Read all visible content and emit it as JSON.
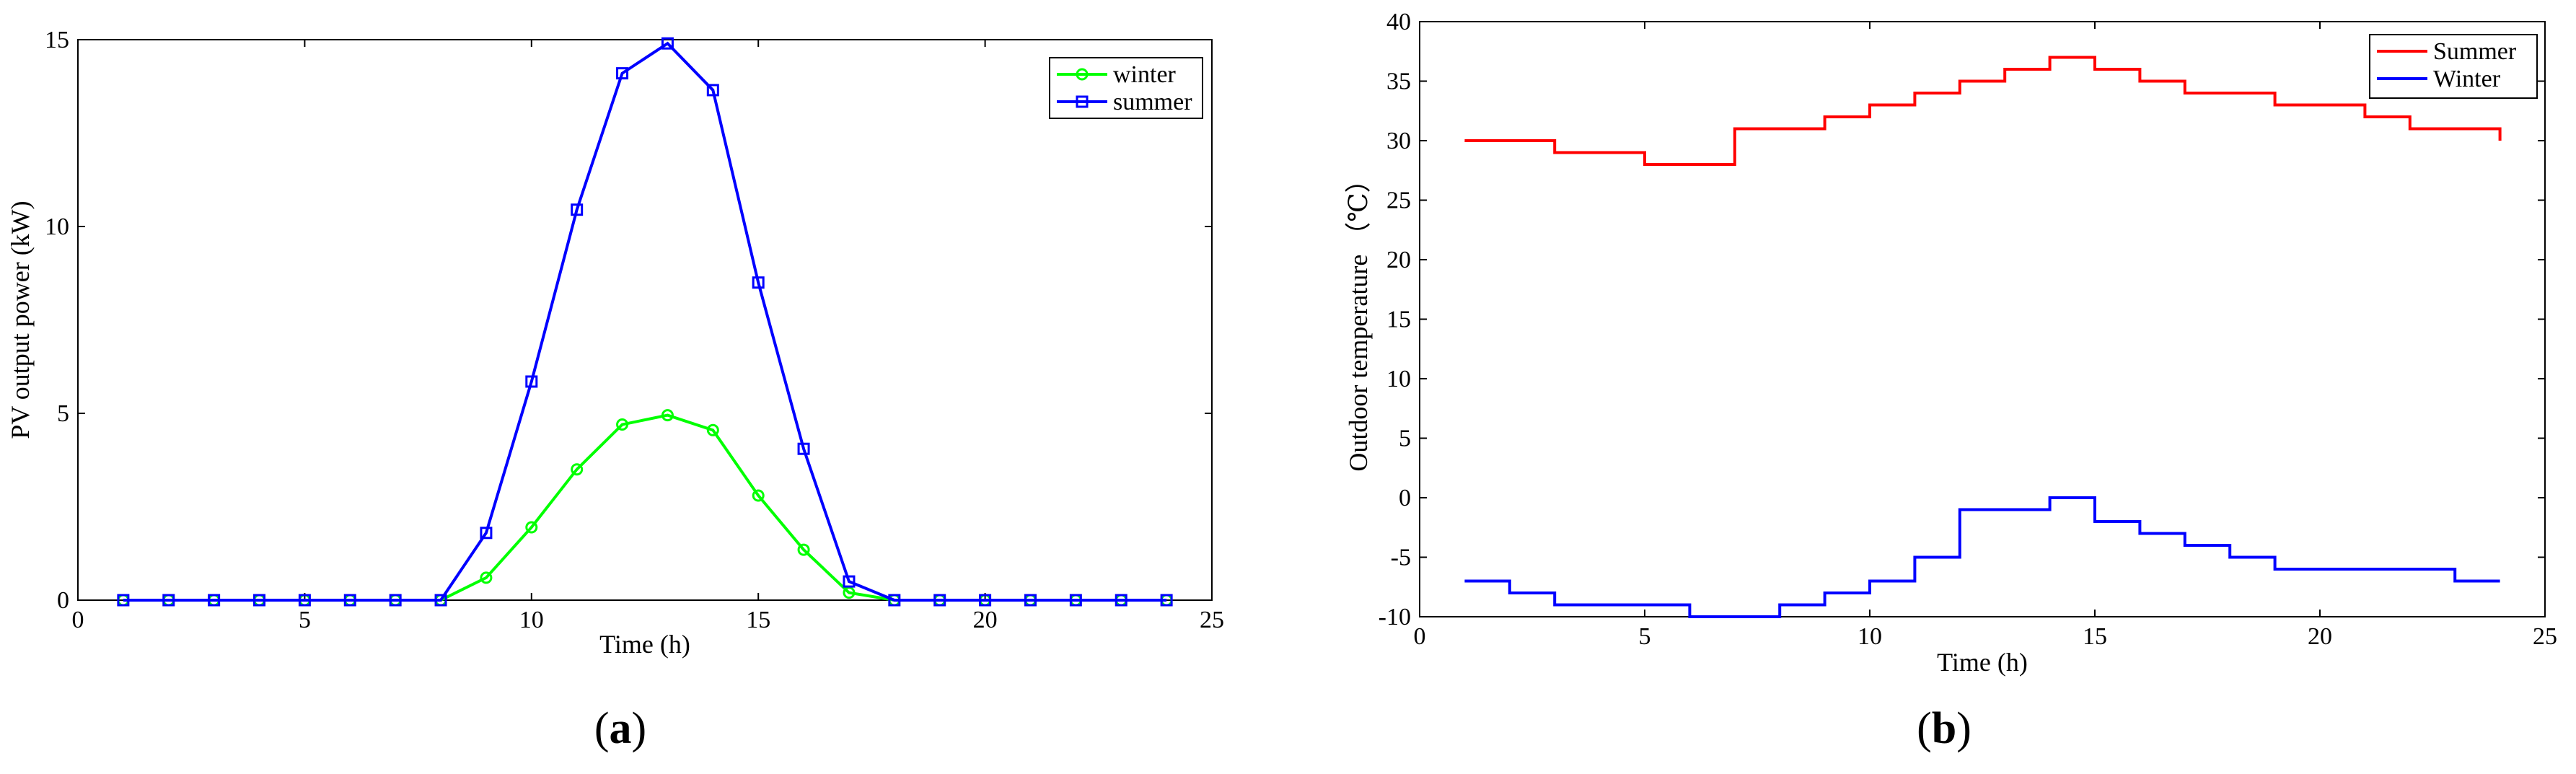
{
  "panel_labels": {
    "a": "a",
    "b": "b"
  },
  "chart_data": [
    {
      "type": "line",
      "panel": "a",
      "title": "",
      "xlabel": "Time (h)",
      "ylabel": "PV output power (kW)",
      "xlim": [
        0,
        25
      ],
      "ylim": [
        0,
        15
      ],
      "xticks": [
        0,
        5,
        10,
        15,
        20,
        25
      ],
      "yticks": [
        0,
        5,
        10,
        15
      ],
      "legend": "top-right",
      "grid": false,
      "x": [
        1,
        2,
        3,
        4,
        5,
        6,
        7,
        8,
        9,
        10,
        11,
        12,
        13,
        14,
        15,
        16,
        17,
        18,
        19,
        20,
        21,
        22,
        23,
        24
      ],
      "series": [
        {
          "name": "winter",
          "color": "#00ff00",
          "marker": "circle",
          "values": [
            0,
            0,
            0,
            0,
            0,
            0,
            0,
            0,
            0.6,
            1.95,
            3.5,
            4.7,
            4.95,
            4.55,
            2.8,
            1.35,
            0.2,
            0,
            0,
            0,
            0,
            0,
            0,
            0
          ]
        },
        {
          "name": "summer",
          "color": "#0000ff",
          "marker": "square",
          "values": [
            0,
            0,
            0,
            0,
            0,
            0,
            0,
            0,
            1.8,
            5.85,
            10.45,
            14.1,
            14.9,
            13.65,
            8.5,
            4.05,
            0.5,
            0,
            0,
            0,
            0,
            0,
            0,
            0
          ]
        }
      ]
    },
    {
      "type": "line",
      "panel": "b",
      "step": true,
      "title": "",
      "xlabel": "Time (h)",
      "ylabel": "Outdoor temperature （℃）",
      "xlim": [
        0,
        25
      ],
      "ylim": [
        -10,
        40
      ],
      "xticks": [
        0,
        5,
        10,
        15,
        20,
        25
      ],
      "yticks": [
        -10,
        -5,
        0,
        5,
        10,
        15,
        20,
        25,
        30,
        35,
        40
      ],
      "legend": "top-right",
      "grid": false,
      "x": [
        1,
        2,
        3,
        4,
        5,
        6,
        7,
        8,
        9,
        10,
        11,
        12,
        13,
        14,
        15,
        16,
        17,
        18,
        19,
        20,
        21,
        22,
        23,
        24
      ],
      "series": [
        {
          "name": "Summer",
          "color": "#ff0000",
          "values": [
            30,
            30,
            29,
            29,
            28,
            28,
            31,
            31,
            32,
            33,
            34,
            35,
            36,
            37,
            36,
            35,
            34,
            34,
            33,
            33,
            32,
            31,
            31,
            30
          ]
        },
        {
          "name": "Winter",
          "color": "#0000ff",
          "values": [
            -7,
            -8,
            -9,
            -9,
            -9,
            -10,
            -10,
            -9,
            -8,
            -7,
            -5,
            -1,
            -1,
            0,
            -2,
            -3,
            -4,
            -5,
            -6,
            -6,
            -6,
            -6,
            -7,
            -7
          ]
        }
      ]
    }
  ]
}
